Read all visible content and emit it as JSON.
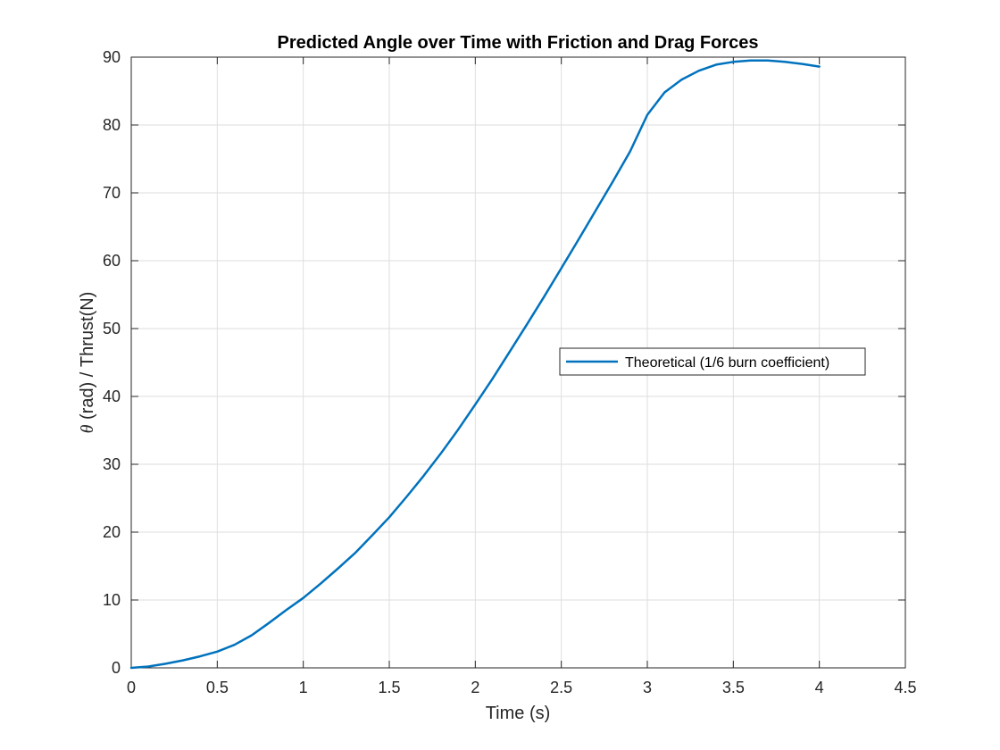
{
  "chart_data": {
    "type": "line",
    "title": "Predicted Angle over Time with Friction and Drag Forces",
    "xlabel": "Time (s)",
    "ylabel_symbol": "θ",
    "ylabel_rest": " (rad) / Thrust(N)",
    "xlim": [
      0,
      4.5
    ],
    "ylim": [
      0,
      90
    ],
    "xticks": [
      "0",
      "0.5",
      "1",
      "1.5",
      "2",
      "2.5",
      "3",
      "3.5",
      "4",
      "4.5"
    ],
    "yticks": [
      "0",
      "10",
      "20",
      "30",
      "40",
      "50",
      "60",
      "70",
      "80",
      "90"
    ],
    "grid": true,
    "legend_position": "center-right",
    "series": [
      {
        "name": "Theoretical (1/6 burn coefficient)",
        "color": "#0072BD",
        "x": [
          0,
          0.1,
          0.2,
          0.3,
          0.4,
          0.5,
          0.6,
          0.7,
          0.8,
          0.9,
          1.0,
          1.1,
          1.2,
          1.3,
          1.4,
          1.5,
          1.6,
          1.7,
          1.8,
          1.9,
          2.0,
          2.1,
          2.2,
          2.3,
          2.4,
          2.5,
          2.6,
          2.7,
          2.8,
          2.9,
          3.0,
          3.1,
          3.2,
          3.3,
          3.4,
          3.5,
          3.6,
          3.7,
          3.8,
          3.9,
          4.0
        ],
        "y": [
          0,
          0.2,
          0.6,
          1.1,
          1.7,
          2.4,
          3.4,
          4.8,
          6.6,
          8.5,
          10.3,
          12.4,
          14.6,
          16.9,
          19.5,
          22.2,
          25.2,
          28.3,
          31.6,
          35.1,
          38.8,
          42.6,
          46.6,
          50.6,
          54.7,
          58.9,
          63.1,
          67.4,
          71.7,
          76.1,
          81.5,
          84.8,
          86.7,
          88.0,
          88.9,
          89.3,
          89.5,
          89.5,
          89.3,
          89.0,
          88.6
        ]
      }
    ]
  }
}
